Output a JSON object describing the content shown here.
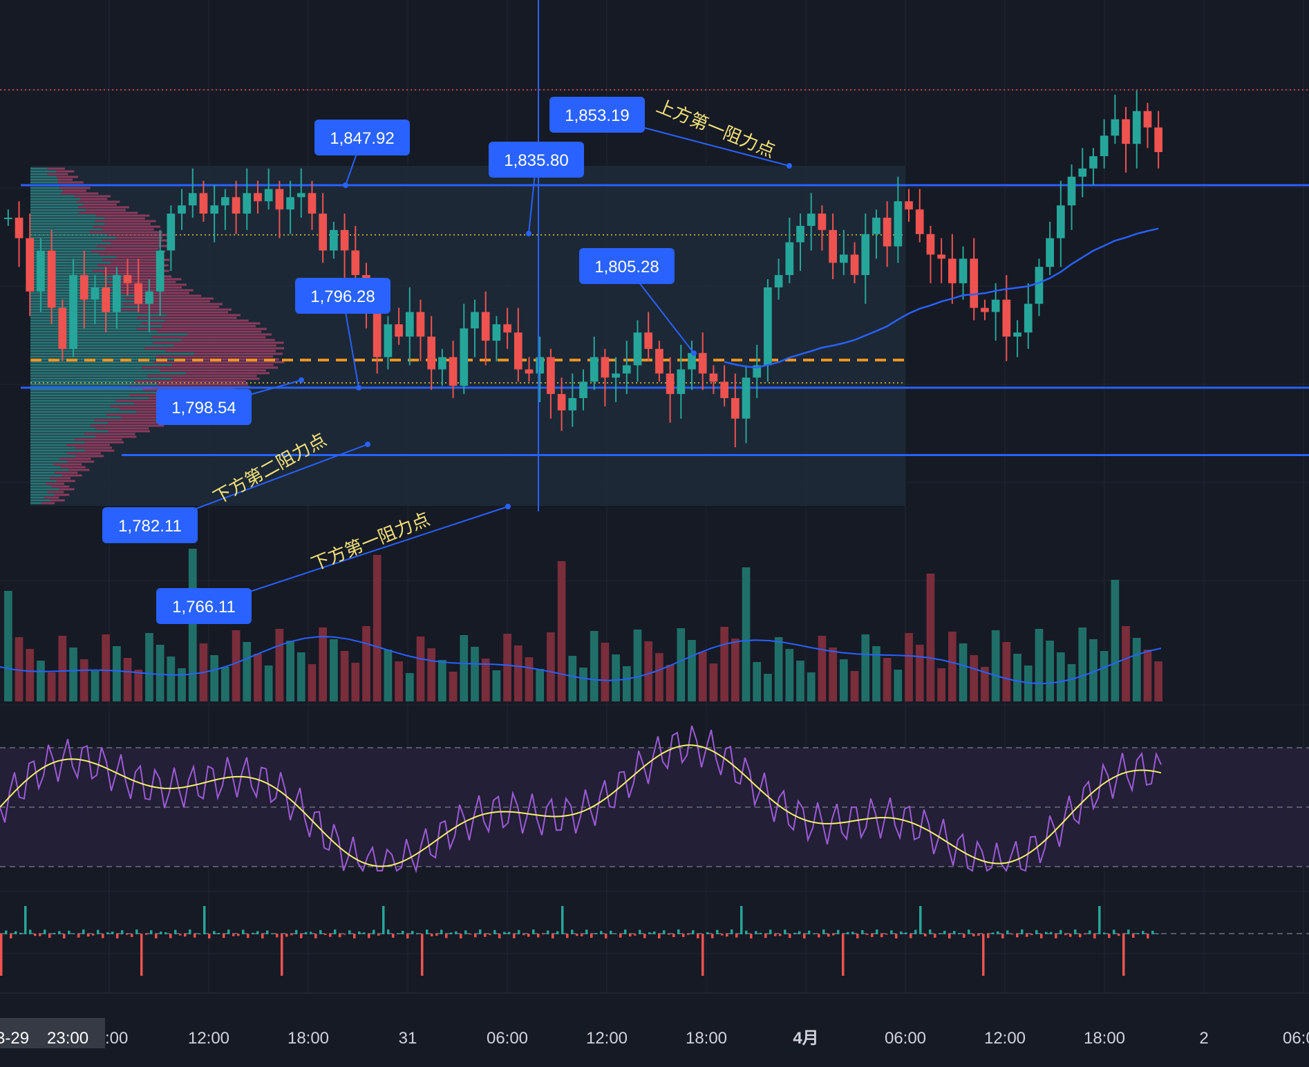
{
  "chart_data": {
    "type": "candlestick",
    "instrument_unit": "price",
    "x_axis": {
      "ticks": [
        "12:00",
        "18:00",
        "31",
        "06:00",
        "12:00",
        "18:00",
        "4月",
        "06:00",
        "12:00",
        "18:00",
        "2",
        "06:00"
      ],
      "bold_ticks": [
        "4月"
      ],
      "partial_left_label": ":00",
      "cursor_label": {
        "date": "3-29",
        "time": "23:00"
      }
    },
    "grid": true,
    "levels": {
      "resistance_upper": 1847.92,
      "support_upper": 1798.54,
      "support_lower": 1782.11,
      "value_area_high": 1835.8,
      "value_area_low": 1796.28,
      "point_of_control": 1805.28,
      "current_price_line": 1860
    },
    "price_labels": [
      {
        "id": "p1847",
        "text": "1,847.92",
        "value": 1847.92
      },
      {
        "id": "p1835",
        "text": "1,835.80",
        "value": 1835.8
      },
      {
        "id": "p1853",
        "text": "1,853.19",
        "value": 1853.19
      },
      {
        "id": "p1805",
        "text": "1,805.28",
        "value": 1805.28
      },
      {
        "id": "p1796",
        "text": "1,796.28",
        "value": 1796.28
      },
      {
        "id": "p1798",
        "text": "1,798.54",
        "value": 1798.54
      },
      {
        "id": "p1782",
        "text": "1,782.11",
        "value": 1782.11
      },
      {
        "id": "p1766",
        "text": "1,766.11",
        "value": 1766.11
      }
    ],
    "annotations": [
      {
        "id": "a_up1",
        "text": "上方第一阻力点"
      },
      {
        "id": "a_down2",
        "text": "下方第二阻力点"
      },
      {
        "id": "a_down1",
        "text": "下方第一阻力点"
      }
    ],
    "price_series_close": [
      1840,
      1835,
      1822,
      1832,
      1818,
      1808,
      1826,
      1820,
      1823,
      1817,
      1826,
      1824,
      1819,
      1822,
      1832,
      1841,
      1843,
      1846,
      1841,
      1843,
      1845,
      1841,
      1846,
      1844,
      1847,
      1842,
      1845,
      1846,
      1841,
      1832,
      1837,
      1832,
      1826,
      1818,
      1806,
      1814,
      1811,
      1817,
      1811,
      1803,
      1806,
      1799,
      1813,
      1817,
      1810,
      1814,
      1812,
      1803,
      1802,
      1806,
      1797,
      1793,
      1796,
      1800,
      1806,
      1801,
      1802,
      1804,
      1812,
      1808,
      1802,
      1797,
      1803,
      1807,
      1802,
      1800,
      1796,
      1791,
      1801,
      1804,
      1823,
      1826,
      1834,
      1838,
      1841,
      1837,
      1829,
      1831,
      1826,
      1836,
      1840,
      1833,
      1844,
      1842,
      1836,
      1831,
      1830,
      1824,
      1830,
      1818,
      1817,
      1820,
      1811,
      1812,
      1819,
      1828,
      1835,
      1843,
      1850,
      1852,
      1855,
      1860,
      1864,
      1858,
      1866,
      1862,
      1856
    ],
    "overlay_line_name": "",
    "volume_panel": {
      "has_average_line": true
    },
    "rsi_panel": {
      "has_signal_line": true,
      "band": [
        30,
        70
      ]
    },
    "histogram_panel": {
      "baseline": 0
    },
    "colors": {
      "background": "#161a25",
      "up": "#26a69a",
      "down": "#ef5350",
      "level_line": "#2962ff",
      "poc_line": "#f0941e",
      "value_area": "#e7c847",
      "rsi": "#9c5bd6",
      "rsi_signal": "#f5f26b",
      "annotation_text": "#f2e27a"
    }
  }
}
